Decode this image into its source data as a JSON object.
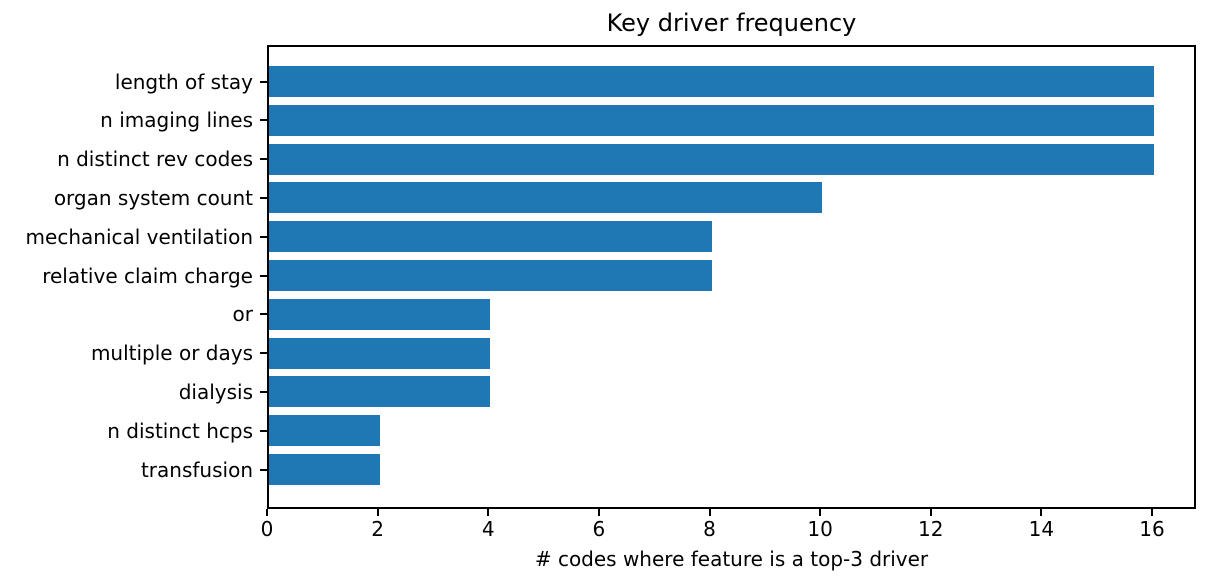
{
  "chart_data": {
    "type": "bar",
    "orientation": "horizontal",
    "title": "Key driver frequency",
    "xlabel": "# codes where feature is a top-3 driver",
    "ylabel": "",
    "categories": [
      "length of stay",
      "n imaging lines",
      "n distinct rev codes",
      "organ system count",
      "mechanical ventilation",
      "relative claim charge",
      "or",
      "multiple or days",
      "dialysis",
      "n distinct hcps",
      "transfusion"
    ],
    "values": [
      16,
      16,
      16,
      10,
      8,
      8,
      4,
      4,
      4,
      2,
      2
    ],
    "xlim": [
      0,
      16.8
    ],
    "xticks": [
      0,
      2,
      4,
      6,
      8,
      10,
      12,
      14,
      16
    ],
    "grid": false,
    "legend": false,
    "colors": {
      "bar": "#1f77b4",
      "axis": "#000000",
      "text": "#000000",
      "background": "#ffffff"
    }
  }
}
